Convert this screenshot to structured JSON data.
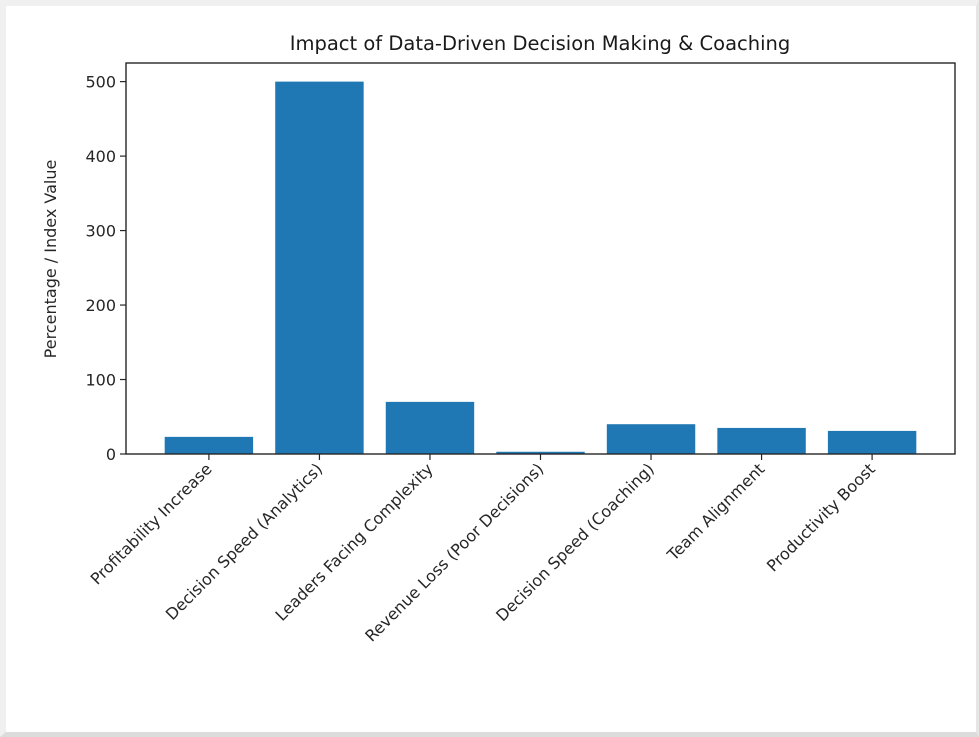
{
  "chart_data": {
    "type": "bar",
    "title": "Impact of Data-Driven Decision Making & Coaching",
    "xlabel": "",
    "ylabel": "Percentage / Index Value",
    "categories": [
      "Profitability Increase",
      "Decision Speed (Analytics)",
      "Leaders Facing Complexity",
      "Revenue Loss (Poor Decisions)",
      "Decision Speed (Coaching)",
      "Team Alignment",
      "Productivity Boost"
    ],
    "values": [
      23,
      500,
      70,
      3,
      40,
      35,
      31
    ],
    "ylim": [
      0,
      525
    ],
    "yticks": [
      0,
      100,
      200,
      300,
      400,
      500
    ],
    "bar_color": "#1f77b4",
    "grid": false,
    "legend": "none",
    "xtick_rotation_deg": 45
  }
}
